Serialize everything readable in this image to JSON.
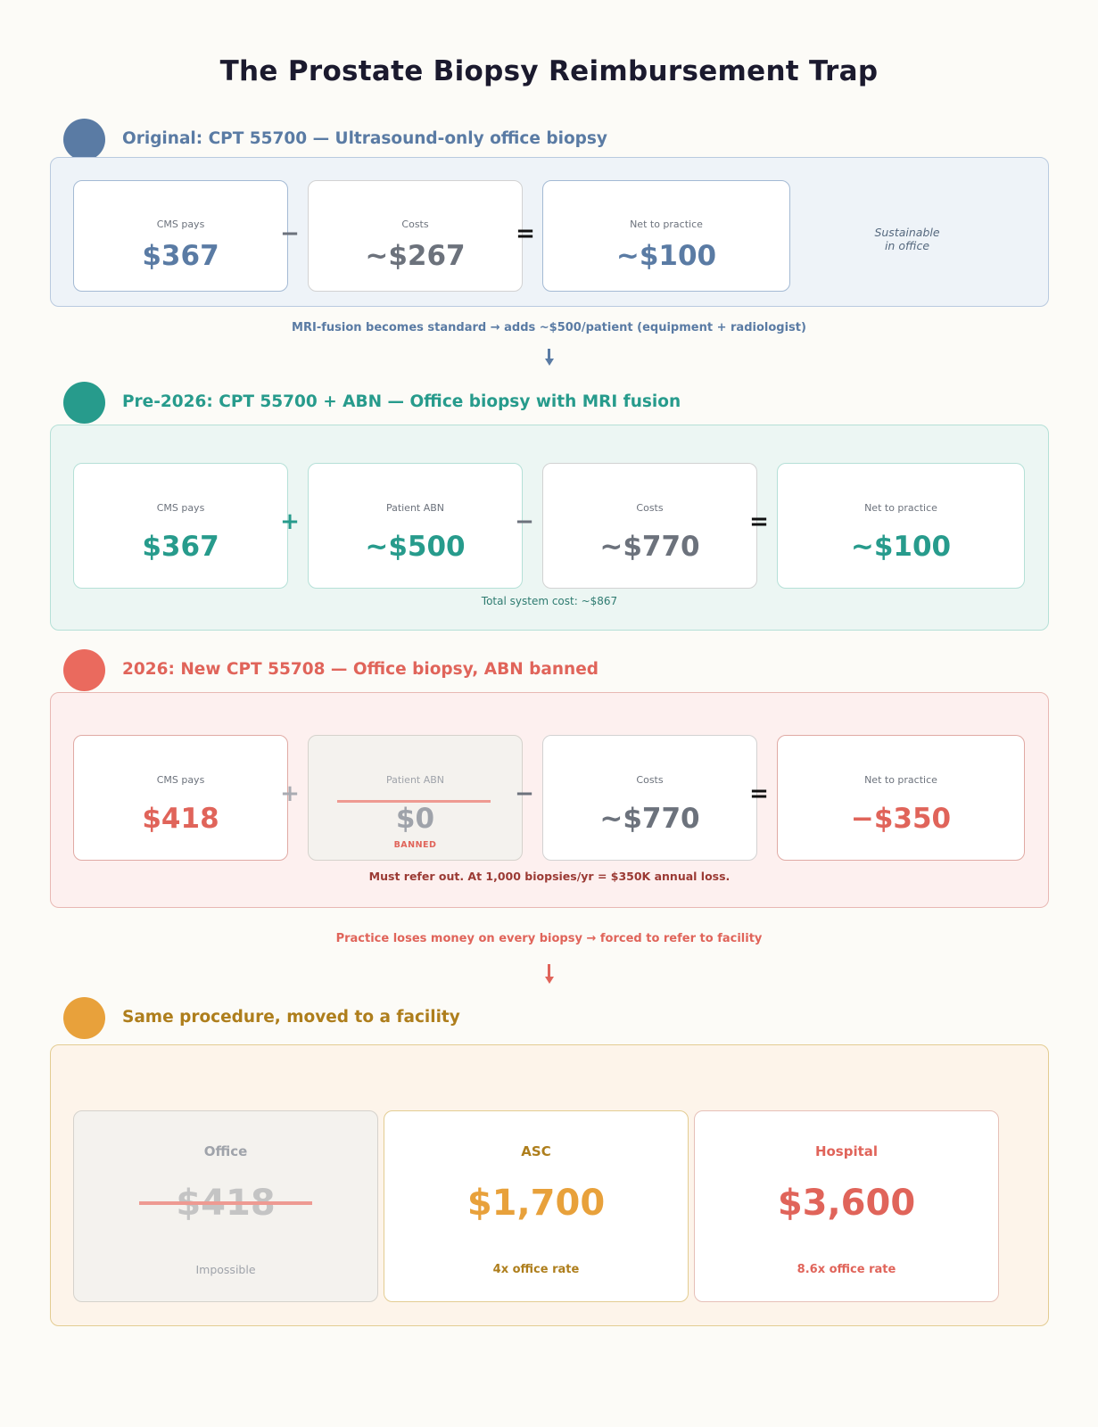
{
  "title": "The Prostate Biopsy Reimbursement Trap",
  "colors": {
    "blue": "#5a7ba4",
    "teal": "#279b8c",
    "red": "#e0645a",
    "gold": "#e8a13b",
    "gray": "#6c727c"
  },
  "section1": {
    "title": "Original: CPT 55700 — Ultrasound-only office biopsy",
    "cards": [
      {
        "label": "CMS pays",
        "value": "$367"
      },
      {
        "label": "Costs",
        "value": "~$267"
      },
      {
        "label": "Net to practice",
        "value": "~$100"
      }
    ],
    "ops": [
      "−",
      "="
    ],
    "side_note_line1": "Sustainable",
    "side_note_line2": "in office"
  },
  "transition1": "MRI-fusion becomes standard → adds ~$500/patient (equipment + radiologist)",
  "section2": {
    "title": "Pre-2026: CPT 55700 + ABN — Office biopsy with MRI fusion",
    "cards": [
      {
        "label": "CMS pays",
        "value": "$367"
      },
      {
        "label": "Patient ABN",
        "value": "~$500"
      },
      {
        "label": "Costs",
        "value": "~$770"
      },
      {
        "label": "Net to practice",
        "value": "~$100"
      }
    ],
    "ops": [
      "+",
      "−",
      "="
    ],
    "footnote": "Total system cost: ~$867"
  },
  "section3": {
    "title": "2026: New CPT 55708 — Office biopsy, ABN banned",
    "cards": [
      {
        "label": "CMS pays",
        "value": "$418"
      },
      {
        "label": "Patient ABN",
        "value": "$0",
        "badge": "BANNED"
      },
      {
        "label": "Costs",
        "value": "~$770"
      },
      {
        "label": "Net to practice",
        "value": "−$350"
      }
    ],
    "ops": [
      "+",
      "−",
      "="
    ],
    "footnote": "Must refer out. At 1,000 biopsies/yr = $350K annual loss."
  },
  "transition2": "Practice loses money on every biopsy → forced to refer to facility",
  "section4": {
    "title": "Same procedure, moved to a facility",
    "cards": [
      {
        "label": "Office",
        "value": "$418",
        "sub": "Impossible"
      },
      {
        "label": "ASC",
        "value": "$1,700",
        "sub": "4x office rate"
      },
      {
        "label": "Hospital",
        "value": "$3,600",
        "sub": "8.6x office rate"
      }
    ]
  }
}
